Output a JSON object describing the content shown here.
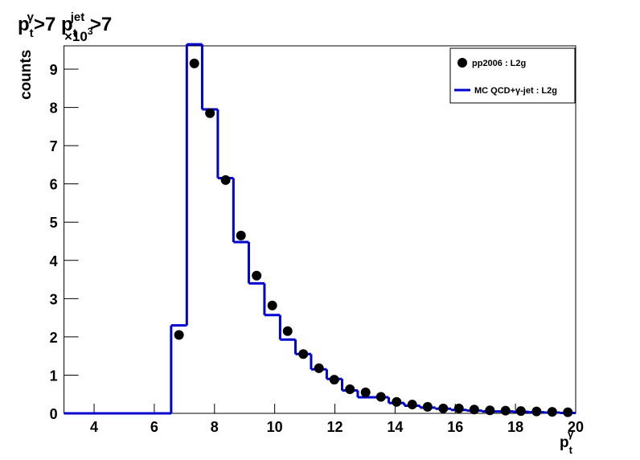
{
  "chart_data": {
    "type": "histogram",
    "title": {
      "base1": "p",
      "sub1": "t",
      "sup1": "γ",
      "mid": ">7 p",
      "sub2": "t",
      "sup2": "jet",
      "end": " >7"
    },
    "xlabel": {
      "base": "p",
      "sub": "t",
      "sup": "γ"
    },
    "ylabel": "counts",
    "multiplier": {
      "base": "×10",
      "sup": "3"
    },
    "xlim": [
      3,
      20
    ],
    "ylim": [
      0,
      9.61
    ],
    "xticks": [
      4,
      6,
      8,
      10,
      12,
      14,
      16,
      18,
      20
    ],
    "yticks": [
      0,
      1,
      2,
      3,
      4,
      5,
      6,
      7,
      8,
      9
    ],
    "bins": [
      3,
      6.56,
      7.08,
      7.59,
      8.11,
      8.63,
      9.14,
      9.66,
      10.18,
      10.69,
      11.21,
      11.73,
      12.24,
      12.76,
      13.28,
      13.79,
      14.31,
      14.83,
      15.34,
      15.86,
      16.38,
      16.89,
      17.41,
      17.93,
      18.44,
      18.96,
      19.48,
      20
    ],
    "series": [
      {
        "name": "MC QCD+γ-jet : L2g",
        "color": "#0000d0",
        "values": [
          0,
          2.3,
          9.65,
          7.95,
          6.15,
          4.48,
          3.4,
          2.57,
          1.93,
          1.55,
          1.15,
          0.9,
          0.6,
          0.42,
          0.42,
          0.27,
          0.2,
          0.15,
          0.12,
          0.09,
          0.07,
          0.05,
          0.05,
          0.04,
          0.03,
          0.02,
          0.01
        ]
      }
    ],
    "points": {
      "name": "pp2006 : L2g",
      "color": "#000000",
      "x": [
        6.82,
        7.33,
        7.85,
        8.37,
        8.88,
        9.4,
        9.92,
        10.43,
        10.95,
        11.47,
        11.98,
        12.5,
        13.02,
        13.53,
        14.05,
        14.57,
        15.08,
        15.6,
        16.12,
        16.63,
        17.15,
        17.67,
        18.18,
        18.7,
        19.22,
        19.74
      ],
      "values": [
        2.05,
        9.15,
        7.85,
        6.1,
        4.65,
        3.6,
        2.82,
        2.15,
        1.55,
        1.18,
        0.88,
        0.63,
        0.55,
        0.43,
        0.3,
        0.23,
        0.17,
        0.13,
        0.13,
        0.1,
        0.08,
        0.07,
        0.06,
        0.05,
        0.04,
        0.03
      ]
    }
  }
}
